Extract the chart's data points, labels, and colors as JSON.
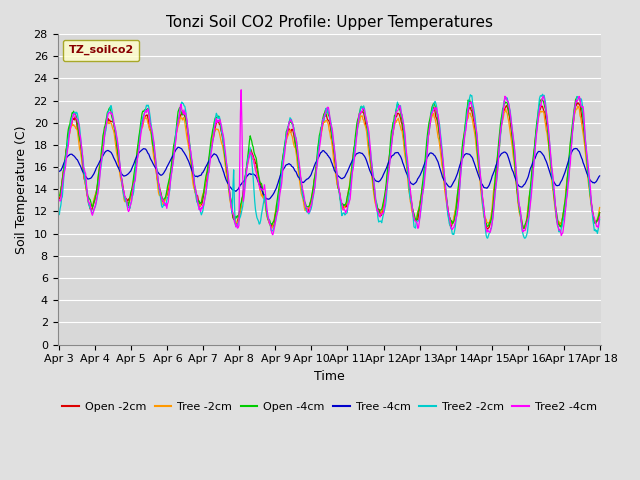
{
  "title": "Tonzi Soil CO2 Profile: Upper Temperatures",
  "xlabel": "Time",
  "ylabel": "Soil Temperature (C)",
  "ylim": [
    0,
    28
  ],
  "yticks": [
    0,
    2,
    4,
    6,
    8,
    10,
    12,
    14,
    16,
    18,
    20,
    22,
    24,
    26,
    28
  ],
  "legend_label": "TZ_soilco2",
  "series_labels": [
    "Open -2cm",
    "Tree -2cm",
    "Open -4cm",
    "Tree -4cm",
    "Tree2 -2cm",
    "Tree2 -4cm"
  ],
  "series_colors": [
    "#dd0000",
    "#ff9900",
    "#00cc00",
    "#0000cc",
    "#00cccc",
    "#ff00ff"
  ],
  "background_color": "#e0e0e0",
  "plot_bg_color": "#d8d8d8",
  "n_days": 15,
  "samples_per_day": 48,
  "start_day": 3,
  "title_fontsize": 11,
  "axis_label_fontsize": 9,
  "tick_label_fontsize": 8,
  "legend_fontsize": 8
}
